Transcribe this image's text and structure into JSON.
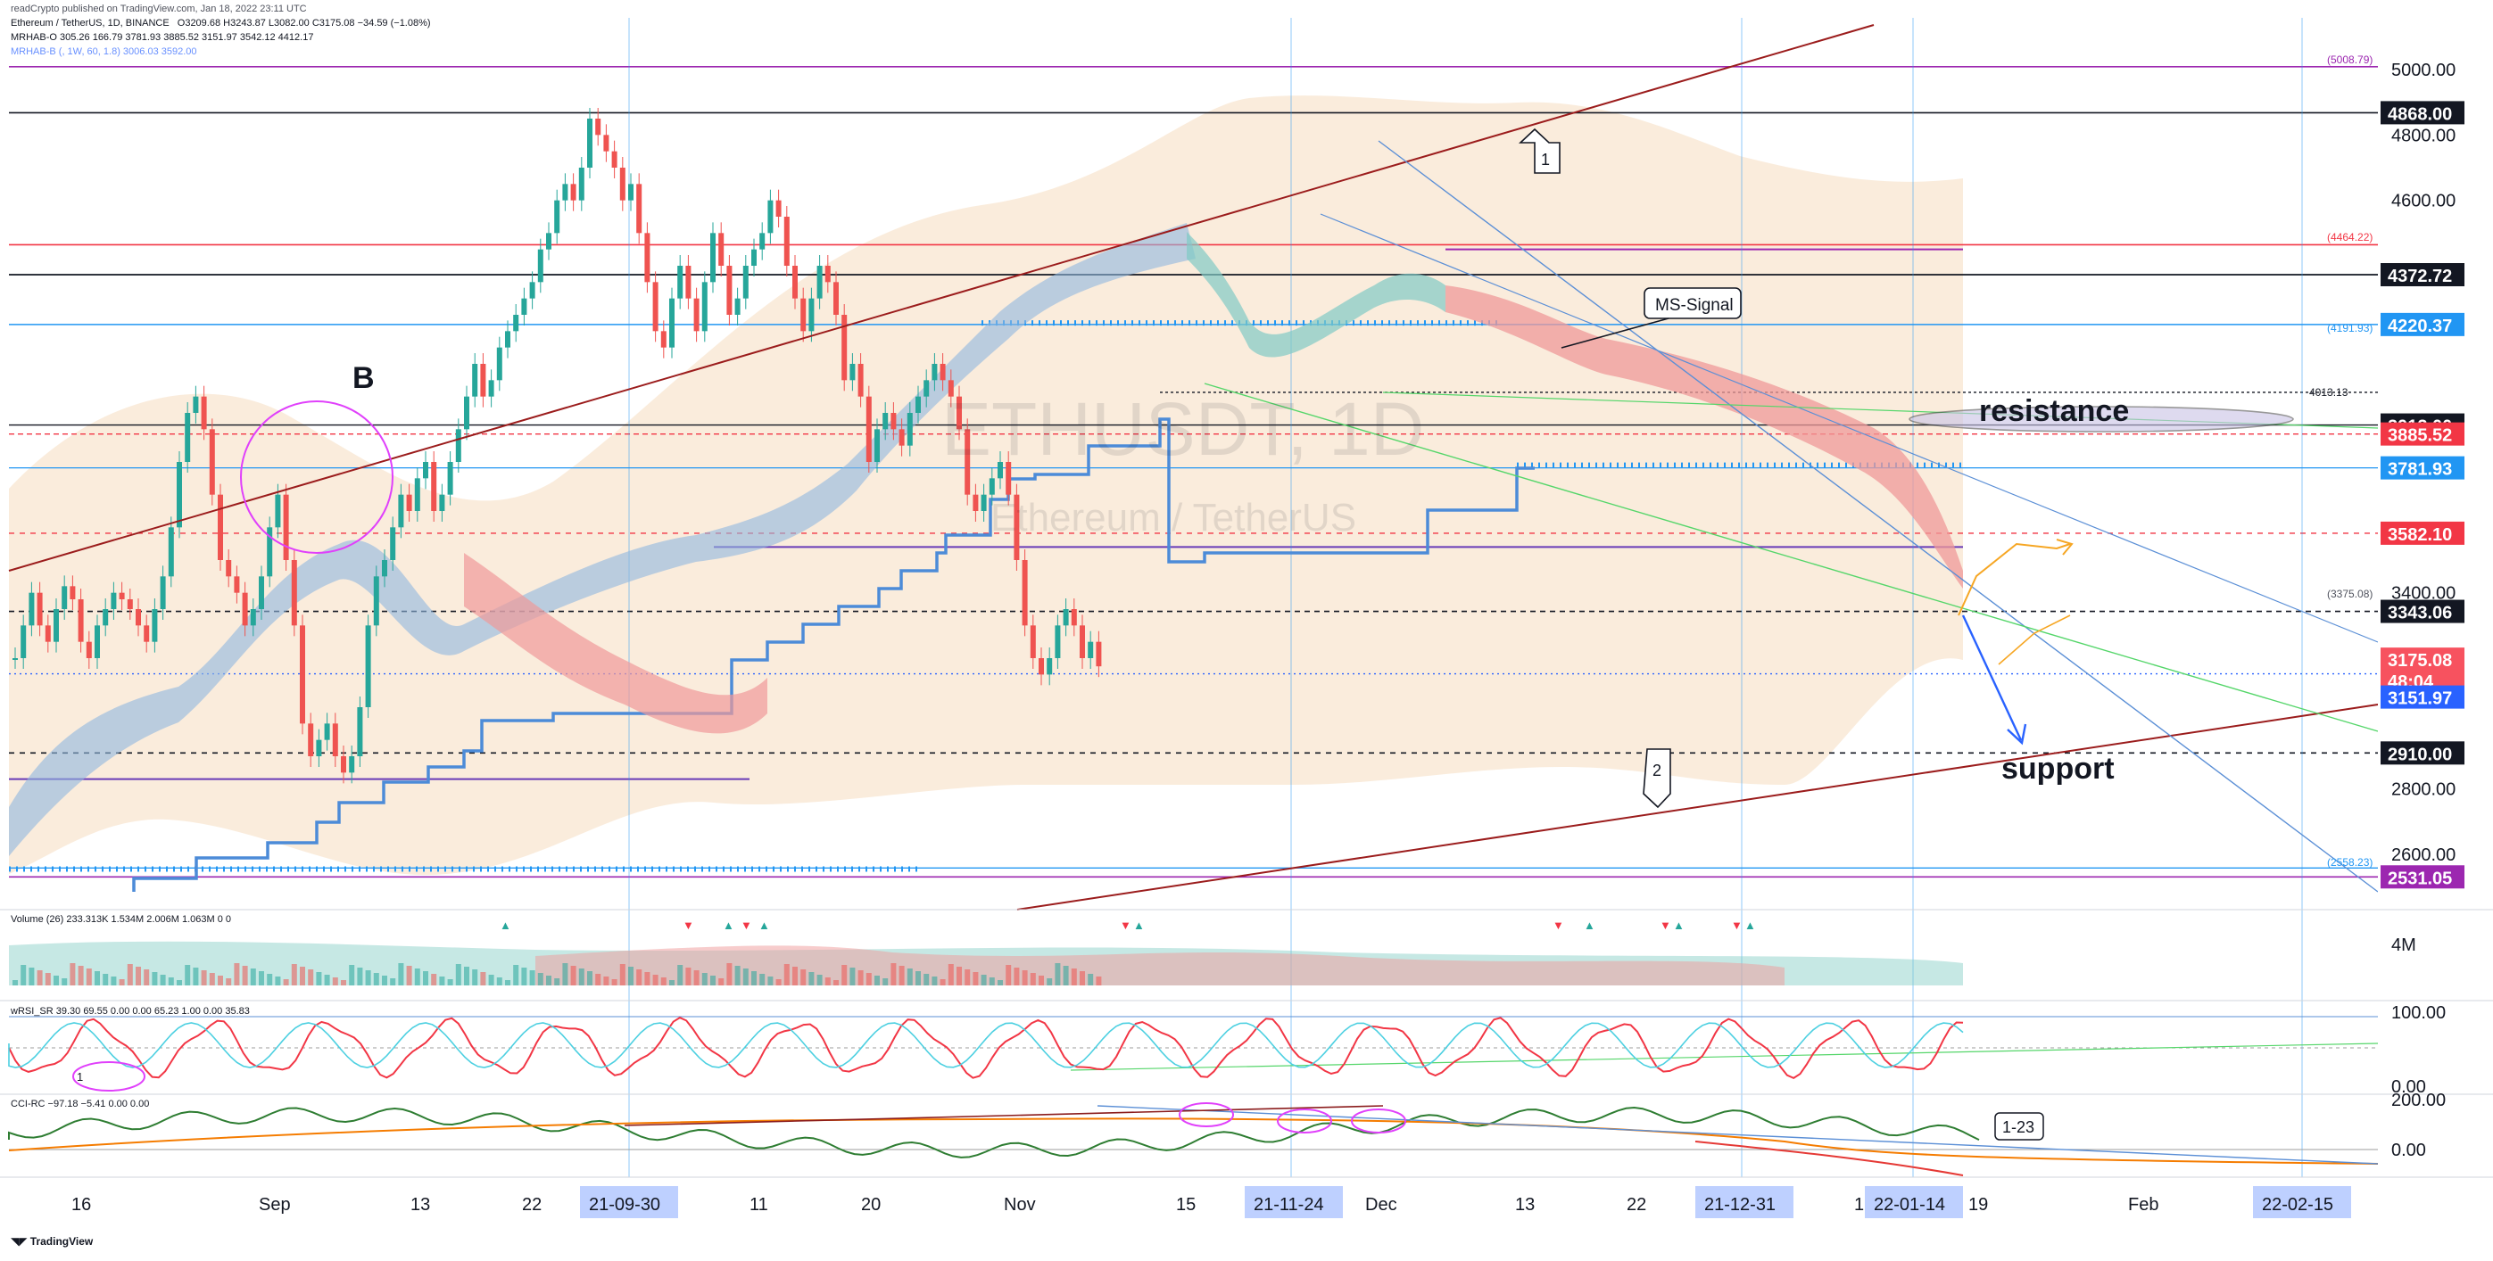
{
  "header": {
    "published": "readCrypto published on TradingView.com, Jan 18, 2022 23:11 UTC",
    "symbol_line": "Ethereum / TetherUS, 1D, BINANCE",
    "ohlc": "O3209.68 H3243.87 L3082.00 C3175.08 −34.59 (−1.08%)",
    "mrhab_o": "MRHAB-O 305.26 166.79 3781.93 3885.52 3151.97 3542.12 4412.17",
    "mrhab_b": "MRHAB-B (, 1W, 60, 1.8) 3006.03 3592.00"
  },
  "watermark": {
    "symbol": "ETHUSDT, 1D",
    "name": "Ethereum / TetherUS"
  },
  "annotations": {
    "wave_b": "B",
    "label_1": "1",
    "label_2": "2",
    "ms_signal": "MS-Signal",
    "resistance": "resistance",
    "support": "support",
    "osc_label_1_23": "1-23",
    "osc_small_1": "1",
    "line_4013": "4013.13",
    "line_5008": "(5008.79)",
    "line_4464": "(4464.22)",
    "line_4191": "(4191.93)",
    "line_3375": "(3375.08)",
    "line_2558": "(2558.23)"
  },
  "price_axis": {
    "ticks": [
      "5000.00",
      "4800.00",
      "4600.00",
      "3400.00",
      "2800.00",
      "2600.00"
    ],
    "tags": [
      {
        "label": "4868.00",
        "color": "#131722"
      },
      {
        "label": "4372.72",
        "color": "#131722"
      },
      {
        "label": "4220.37",
        "color": "#2196f3"
      },
      {
        "label": "3913.00",
        "color": "#131722"
      },
      {
        "label": "3885.52",
        "color": "#f23645"
      },
      {
        "label": "3781.93",
        "color": "#2196f3"
      },
      {
        "label": "3582.10",
        "color": "#f23645"
      },
      {
        "label": "3343.06",
        "color": "#131722"
      },
      {
        "label": "3175.08",
        "color": "#f7525f"
      },
      {
        "label": "48:04",
        "color": "#f7525f"
      },
      {
        "label": "3151.97",
        "color": "#2962ff"
      },
      {
        "label": "2910.00",
        "color": "#131722"
      },
      {
        "label": "2531.05",
        "color": "#9c27b0"
      }
    ]
  },
  "volume_pane": {
    "legend": "Volume (26)  233.313K  1.534M  2.006M  1.063M  0  0",
    "axis": "4M"
  },
  "rsi_pane": {
    "legend": "wRSI_SR  39.30  69.55  0.00  0.00  65.23  1.00  0.00  35.83",
    "axis_top": "100.00",
    "axis_bottom": "0.00"
  },
  "cci_pane": {
    "legend": "CCI-RC  −97.18  −5.41  0.00  0.00",
    "axis_top": "200.00",
    "axis_bottom": "0.00"
  },
  "time_axis": {
    "labels": [
      "16",
      "Sep",
      "13",
      "22",
      "11",
      "20",
      "Nov",
      "15",
      "Dec",
      "13",
      "22",
      "19",
      "Feb"
    ],
    "highlighted": [
      "21-09-30",
      "21-11-24",
      "21-12-31",
      "22-01-14",
      "22-02-15"
    ],
    "prefix_1": "1"
  },
  "footer": {
    "brand": "TradingView"
  },
  "colors": {
    "bull": "#26a69a",
    "bear": "#ef5350",
    "trend_red": "#9b1c1c",
    "support_blue": "#2962ff"
  }
}
